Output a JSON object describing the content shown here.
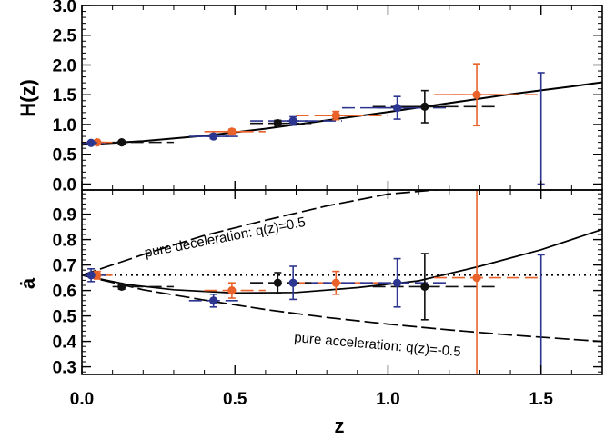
{
  "chart_data": [
    {
      "type": "scatter",
      "panel": "top",
      "xlabel": "",
      "ylabel": "H(z)",
      "xlim": [
        0.0,
        1.7
      ],
      "ylim": [
        -0.1,
        3.0
      ],
      "yticks": [
        "0.0",
        "0.5",
        "1.0",
        "1.5",
        "2.0",
        "2.5",
        "3.0"
      ],
      "series": [
        {
          "color": "#e8622a",
          "points": [
            {
              "x": 0.05,
              "y": 0.7,
              "xerr": 0.03,
              "yerr": 0.02,
              "bin": [
                0.0,
                0.1
              ]
            },
            {
              "x": 0.49,
              "y": 0.88,
              "xerr": 0.05,
              "yerr": 0.04,
              "bin": [
                0.4,
                0.6
              ]
            },
            {
              "x": 0.83,
              "y": 1.15,
              "xerr": 0.07,
              "yerr": 0.07,
              "bin": [
                0.7,
                1.0
              ]
            },
            {
              "x": 1.29,
              "y": 1.5,
              "xerr": 0.1,
              "yerr": 0.52,
              "bin": [
                1.15,
                1.5
              ]
            }
          ]
        },
        {
          "color": "#2c3590",
          "points": [
            {
              "x": 0.03,
              "y": 0.69,
              "xerr": 0.02,
              "yerr": 0.02,
              "bin": [
                0.0,
                0.08
              ]
            },
            {
              "x": 0.43,
              "y": 0.8,
              "xerr": 0.05,
              "yerr": 0.04,
              "bin": [
                0.35,
                0.52
              ]
            },
            {
              "x": 0.69,
              "y": 1.06,
              "xerr": 0.05,
              "yerr": 0.07,
              "bin": [
                0.55,
                0.85
              ]
            },
            {
              "x": 1.03,
              "y": 1.28,
              "xerr": 0.08,
              "yerr": 0.19,
              "bin": [
                0.85,
                1.2
              ]
            },
            {
              "x": 1.5,
              "y": 1.5,
              "xerr": 0.0,
              "yerr": [
                1.5,
                0.37
              ],
              "bin": [
                1.5,
                1.5
              ]
            }
          ]
        },
        {
          "color": "#111111",
          "points": [
            {
              "x": 0.13,
              "y": 0.7,
              "xerr": 0.02,
              "yerr": 0.02,
              "bin": [
                0.1,
                0.3
              ]
            },
            {
              "x": 0.64,
              "y": 1.02,
              "xerr": 0.03,
              "yerr": 0.05,
              "bin": [
                0.55,
                0.75
              ]
            },
            {
              "x": 1.12,
              "y": 1.3,
              "xerr": 0.07,
              "yerr": 0.27,
              "bin": [
                0.95,
                1.35
              ]
            }
          ]
        }
      ],
      "model_curve": {
        "points": [
          [
            0.0,
            0.66
          ],
          [
            0.2,
            0.72
          ],
          [
            0.4,
            0.81
          ],
          [
            0.6,
            0.93
          ],
          [
            0.8,
            1.07
          ],
          [
            1.0,
            1.21
          ],
          [
            1.2,
            1.36
          ],
          [
            1.4,
            1.51
          ],
          [
            1.6,
            1.64
          ],
          [
            1.7,
            1.71
          ]
        ]
      }
    },
    {
      "type": "scatter",
      "panel": "bottom",
      "xlabel": "z",
      "ylabel": "ȧ",
      "xlim": [
        0.0,
        1.7
      ],
      "ylim": [
        0.27,
        0.995
      ],
      "xticks": [
        "0.0",
        "0.5",
        "1.0",
        "1.5"
      ],
      "yticks": [
        "0.3",
        "0.4",
        "0.5",
        "0.6",
        "0.7",
        "0.8",
        "0.9"
      ],
      "series": [
        {
          "color": "#e8622a",
          "points": [
            {
              "x": 0.05,
              "y": 0.66,
              "yerr": 0.015
            },
            {
              "x": 0.49,
              "y": 0.6,
              "yerr": 0.03
            },
            {
              "x": 0.83,
              "y": 0.63,
              "yerr": 0.045
            },
            {
              "x": 1.29,
              "y": 0.65,
              "yerr": 0.45
            }
          ]
        },
        {
          "color": "#2c3590",
          "points": [
            {
              "x": 0.03,
              "y": 0.66,
              "yerr": 0.025
            },
            {
              "x": 0.43,
              "y": 0.56,
              "yerr": 0.025
            },
            {
              "x": 0.69,
              "y": 0.63,
              "yerr": 0.065
            },
            {
              "x": 1.03,
              "y": 0.63,
              "yerr": 0.095
            },
            {
              "x": 1.5,
              "y": 0.63,
              "yerr": [
                0.5,
                0.11
              ]
            }
          ]
        },
        {
          "color": "#111111",
          "points": [
            {
              "x": 0.13,
              "y": 0.615,
              "yerr": 0.01
            },
            {
              "x": 0.64,
              "y": 0.63,
              "yerr": 0.04
            },
            {
              "x": 1.12,
              "y": 0.615,
              "yerr": 0.13
            }
          ]
        }
      ],
      "reference_line": {
        "y": 0.66
      },
      "model_curves": [
        {
          "name": "pure deceleration: q(z)=0.5",
          "points": [
            [
              0.0,
              0.66
            ],
            [
              0.2,
              0.741
            ],
            [
              0.4,
              0.816
            ],
            [
              0.6,
              0.876
            ],
            [
              0.8,
              0.932
            ],
            [
              1.0,
              0.979
            ],
            [
              1.2,
              1.0
            ]
          ]
        },
        {
          "name": "pure acceleration: q(z)=-0.5",
          "points": [
            [
              0.0,
              0.66
            ],
            [
              0.2,
              0.603
            ],
            [
              0.4,
              0.562
            ],
            [
              0.6,
              0.525
            ],
            [
              0.8,
              0.494
            ],
            [
              1.0,
              0.468
            ],
            [
              1.2,
              0.445
            ],
            [
              1.4,
              0.425
            ],
            [
              1.6,
              0.408
            ],
            [
              1.7,
              0.4
            ]
          ]
        },
        {
          "name": "",
          "points": [
            [
              0.0,
              0.66
            ],
            [
              0.15,
              0.623
            ],
            [
              0.3,
              0.603
            ],
            [
              0.5,
              0.59
            ],
            [
              0.7,
              0.592
            ],
            [
              0.9,
              0.611
            ],
            [
              1.1,
              0.638
            ],
            [
              1.3,
              0.695
            ],
            [
              1.5,
              0.76
            ],
            [
              1.7,
              0.84
            ]
          ]
        }
      ],
      "annotations": [
        "pure deceleration: q(z)=0.5",
        "pure acceleration: q(z)=-0.5"
      ]
    }
  ]
}
